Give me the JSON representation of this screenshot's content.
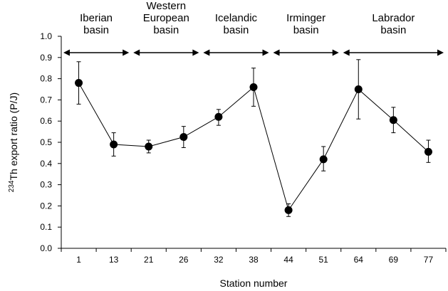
{
  "chart_data": {
    "type": "line",
    "xlabel": "Station number",
    "ylabel_sup": "234",
    "ylabel_main": "Th export ratio (P/J)",
    "categories": [
      "1",
      "13",
      "21",
      "26",
      "32",
      "38",
      "44",
      "51",
      "64",
      "69",
      "77"
    ],
    "series": [
      {
        "values": [
          0.78,
          0.49,
          0.48,
          0.525,
          0.62,
          0.76,
          0.18,
          0.42,
          0.75,
          0.605,
          0.455
        ],
        "err_low": [
          0.68,
          0.435,
          0.45,
          0.475,
          0.58,
          0.67,
          0.15,
          0.365,
          0.61,
          0.545,
          0.405
        ],
        "err_high": [
          0.88,
          0.545,
          0.51,
          0.575,
          0.655,
          0.85,
          0.21,
          0.48,
          0.89,
          0.665,
          0.51
        ]
      }
    ],
    "ylim": [
      0,
      1.0
    ],
    "yticks": [
      "0.0",
      "0.1",
      "0.2",
      "0.3",
      "0.4",
      "0.5",
      "0.6",
      "0.7",
      "0.8",
      "0.9",
      "1.0"
    ],
    "grid": false,
    "regions": [
      {
        "lines": [
          "Iberian",
          "basin"
        ],
        "start_index": 0,
        "end_index": 1
      },
      {
        "lines": [
          "Western",
          "European",
          "basin"
        ],
        "start_index": 2,
        "end_index": 3
      },
      {
        "lines": [
          "Icelandic",
          "basin"
        ],
        "start_index": 4,
        "end_index": 5
      },
      {
        "lines": [
          "Irminger",
          "basin"
        ],
        "start_index": 6,
        "end_index": 7
      },
      {
        "lines": [
          "Labrador",
          "basin"
        ],
        "start_index": 8,
        "end_index": 10
      }
    ]
  }
}
